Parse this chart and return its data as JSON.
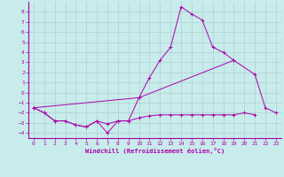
{
  "xlabel": "Windchill (Refroidissement éolien,°C)",
  "background_color": "#c8ebeb",
  "grid_color": "#b0d0d0",
  "line_color": "#aa00aa",
  "x_values": [
    0,
    1,
    2,
    3,
    4,
    5,
    6,
    7,
    8,
    9,
    10,
    11,
    12,
    13,
    14,
    15,
    16,
    17,
    18,
    19,
    20,
    21,
    22,
    23
  ],
  "line1_x": [
    0,
    1,
    2,
    3,
    4,
    5,
    6,
    7,
    8,
    9,
    10,
    11,
    12,
    13,
    14,
    15,
    16,
    17,
    18,
    19
  ],
  "line1_y": [
    -1.5,
    -2.0,
    -2.8,
    -2.8,
    -3.2,
    -3.4,
    -2.8,
    -4.0,
    -2.8,
    -2.8,
    -0.5,
    1.5,
    3.2,
    4.5,
    8.5,
    7.8,
    7.2,
    4.5,
    4.0,
    3.2
  ],
  "line2_x": [
    0,
    1,
    2,
    3,
    4,
    5,
    6,
    7,
    8,
    9,
    10,
    11,
    12,
    13,
    14,
    15,
    16,
    17,
    18,
    19,
    20,
    21
  ],
  "line2_y": [
    -1.5,
    -2.0,
    -2.8,
    -2.8,
    -3.2,
    -3.4,
    -2.8,
    -3.1,
    -2.8,
    -2.8,
    -2.5,
    -2.3,
    -2.2,
    -2.2,
    -2.2,
    -2.2,
    -2.2,
    -2.2,
    -2.2,
    -2.2,
    -2.0,
    -2.2
  ],
  "line3_x": [
    0,
    10,
    19,
    21,
    22,
    23
  ],
  "line3_y": [
    -1.5,
    -0.5,
    3.2,
    1.8,
    -1.5,
    -2.0
  ],
  "ylim": [
    -4.5,
    9.0
  ],
  "xlim": [
    -0.5,
    23.5
  ],
  "yticks": [
    -4,
    -3,
    -2,
    -1,
    0,
    1,
    2,
    3,
    4,
    5,
    6,
    7,
    8
  ],
  "xticks": [
    0,
    1,
    2,
    3,
    4,
    5,
    6,
    7,
    8,
    9,
    10,
    11,
    12,
    13,
    14,
    15,
    16,
    17,
    18,
    19,
    20,
    21,
    22,
    23
  ]
}
